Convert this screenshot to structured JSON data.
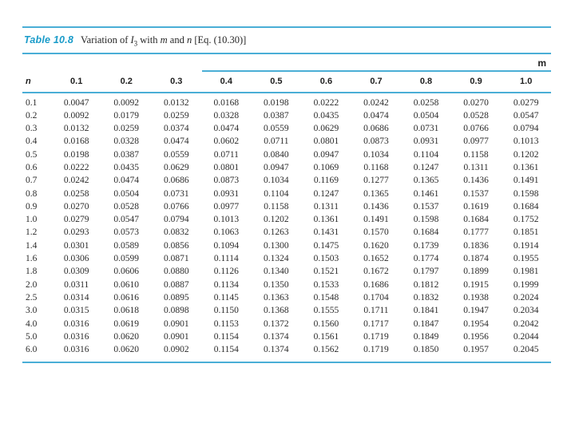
{
  "table": {
    "label": "Table 10.8",
    "caption": {
      "prefix": "Variation of ",
      "var_i": "I",
      "var_i_sub": "3",
      "mid1": " with ",
      "var_m": "m",
      "mid2": " and ",
      "var_n": "n",
      "suffix": " [Eq. (10.30)]"
    },
    "column_group_label": "m",
    "row_header_label": "n",
    "column_headers": [
      "0.1",
      "0.2",
      "0.3",
      "0.4",
      "0.5",
      "0.6",
      "0.7",
      "0.8",
      "0.9",
      "1.0"
    ],
    "rows": [
      {
        "n": "0.1",
        "values": [
          "0.0047",
          "0.0092",
          "0.0132",
          "0.0168",
          "0.0198",
          "0.0222",
          "0.0242",
          "0.0258",
          "0.0270",
          "0.0279"
        ]
      },
      {
        "n": "0.2",
        "values": [
          "0.0092",
          "0.0179",
          "0.0259",
          "0.0328",
          "0.0387",
          "0.0435",
          "0.0474",
          "0.0504",
          "0.0528",
          "0.0547"
        ]
      },
      {
        "n": "0.3",
        "values": [
          "0.0132",
          "0.0259",
          "0.0374",
          "0.0474",
          "0.0559",
          "0.0629",
          "0.0686",
          "0.0731",
          "0.0766",
          "0.0794"
        ]
      },
      {
        "n": "0.4",
        "values": [
          "0.0168",
          "0.0328",
          "0.0474",
          "0.0602",
          "0.0711",
          "0.0801",
          "0.0873",
          "0.0931",
          "0.0977",
          "0.1013"
        ]
      },
      {
        "n": "0.5",
        "values": [
          "0.0198",
          "0.0387",
          "0.0559",
          "0.0711",
          "0.0840",
          "0.0947",
          "0.1034",
          "0.1104",
          "0.1158",
          "0.1202"
        ]
      },
      {
        "n": "0.6",
        "values": [
          "0.0222",
          "0.0435",
          "0.0629",
          "0.0801",
          "0.0947",
          "0.1069",
          "0.1168",
          "0.1247",
          "0.1311",
          "0.1361"
        ]
      },
      {
        "n": "0.7",
        "values": [
          "0.0242",
          "0.0474",
          "0.0686",
          "0.0873",
          "0.1034",
          "0.1169",
          "0.1277",
          "0.1365",
          "0.1436",
          "0.1491"
        ]
      },
      {
        "n": "0.8",
        "values": [
          "0.0258",
          "0.0504",
          "0.0731",
          "0.0931",
          "0.1104",
          "0.1247",
          "0.1365",
          "0.1461",
          "0.1537",
          "0.1598"
        ]
      },
      {
        "n": "0.9",
        "values": [
          "0.0270",
          "0.0528",
          "0.0766",
          "0.0977",
          "0.1158",
          "0.1311",
          "0.1436",
          "0.1537",
          "0.1619",
          "0.1684"
        ]
      },
      {
        "n": "1.0",
        "values": [
          "0.0279",
          "0.0547",
          "0.0794",
          "0.1013",
          "0.1202",
          "0.1361",
          "0.1491",
          "0.1598",
          "0.1684",
          "0.1752"
        ]
      },
      {
        "n": "1.2",
        "values": [
          "0.0293",
          "0.0573",
          "0.0832",
          "0.1063",
          "0.1263",
          "0.1431",
          "0.1570",
          "0.1684",
          "0.1777",
          "0.1851"
        ]
      },
      {
        "n": "1.4",
        "values": [
          "0.0301",
          "0.0589",
          "0.0856",
          "0.1094",
          "0.1300",
          "0.1475",
          "0.1620",
          "0.1739",
          "0.1836",
          "0.1914"
        ]
      },
      {
        "n": "1.6",
        "values": [
          "0.0306",
          "0.0599",
          "0.0871",
          "0.1114",
          "0.1324",
          "0.1503",
          "0.1652",
          "0.1774",
          "0.1874",
          "0.1955"
        ]
      },
      {
        "n": "1.8",
        "values": [
          "0.0309",
          "0.0606",
          "0.0880",
          "0.1126",
          "0.1340",
          "0.1521",
          "0.1672",
          "0.1797",
          "0.1899",
          "0.1981"
        ]
      },
      {
        "n": "2.0",
        "values": [
          "0.0311",
          "0.0610",
          "0.0887",
          "0.1134",
          "0.1350",
          "0.1533",
          "0.1686",
          "0.1812",
          "0.1915",
          "0.1999"
        ]
      },
      {
        "n": "2.5",
        "values": [
          "0.0314",
          "0.0616",
          "0.0895",
          "0.1145",
          "0.1363",
          "0.1548",
          "0.1704",
          "0.1832",
          "0.1938",
          "0.2024"
        ]
      },
      {
        "n": "3.0",
        "values": [
          "0.0315",
          "0.0618",
          "0.0898",
          "0.1150",
          "0.1368",
          "0.1555",
          "0.1711",
          "0.1841",
          "0.1947",
          "0.2034"
        ]
      },
      {
        "n": "4.0",
        "values": [
          "0.0316",
          "0.0619",
          "0.0901",
          "0.1153",
          "0.1372",
          "0.1560",
          "0.1717",
          "0.1847",
          "0.1954",
          "0.2042"
        ]
      },
      {
        "n": "5.0",
        "values": [
          "0.0316",
          "0.0620",
          "0.0901",
          "0.1154",
          "0.1374",
          "0.1561",
          "0.1719",
          "0.1849",
          "0.1956",
          "0.2044"
        ]
      },
      {
        "n": "6.0",
        "values": [
          "0.0316",
          "0.0620",
          "0.0902",
          "0.1154",
          "0.1374",
          "0.1562",
          "0.1719",
          "0.1850",
          "0.1957",
          "0.2045"
        ]
      }
    ],
    "colors": {
      "rule": "#4aaed6",
      "label": "#199bc9",
      "text": "#2b2b2b"
    }
  }
}
